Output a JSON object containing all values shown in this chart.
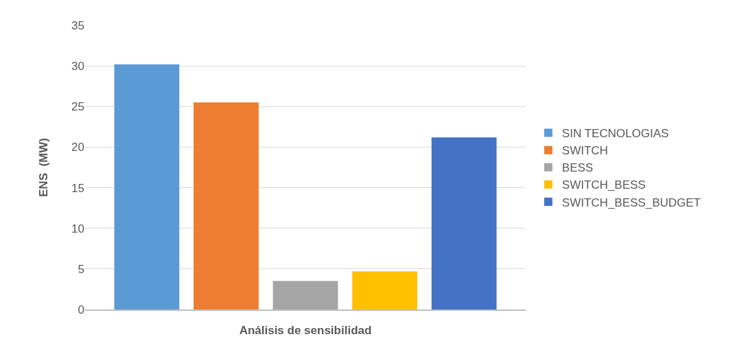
{
  "chart_data": {
    "type": "bar",
    "xlabel": "Análisis de sensibilidad",
    "ylabel": "ENS  (MW)",
    "categories": [
      null
    ],
    "series": [
      {
        "name": "SIN TECNOLOGIAS",
        "color": "#5b9bd5",
        "values": [
          30.2
        ]
      },
      {
        "name": "SWITCH",
        "color": "#ed7d31",
        "values": [
          25.5
        ]
      },
      {
        "name": "BESS",
        "color": "#a5a5a5",
        "values": [
          3.5
        ]
      },
      {
        "name": "SWITCH_BESS",
        "color": "#ffc000",
        "values": [
          4.7
        ]
      },
      {
        "name": "SWITCH_BESS_BUDGET",
        "color": "#4472c4",
        "values": [
          21.2
        ]
      }
    ],
    "ylim": [
      0,
      35
    ],
    "yticks": [
      0,
      5,
      10,
      15,
      20,
      25,
      30,
      35
    ],
    "grid": "y",
    "legend": "right"
  }
}
